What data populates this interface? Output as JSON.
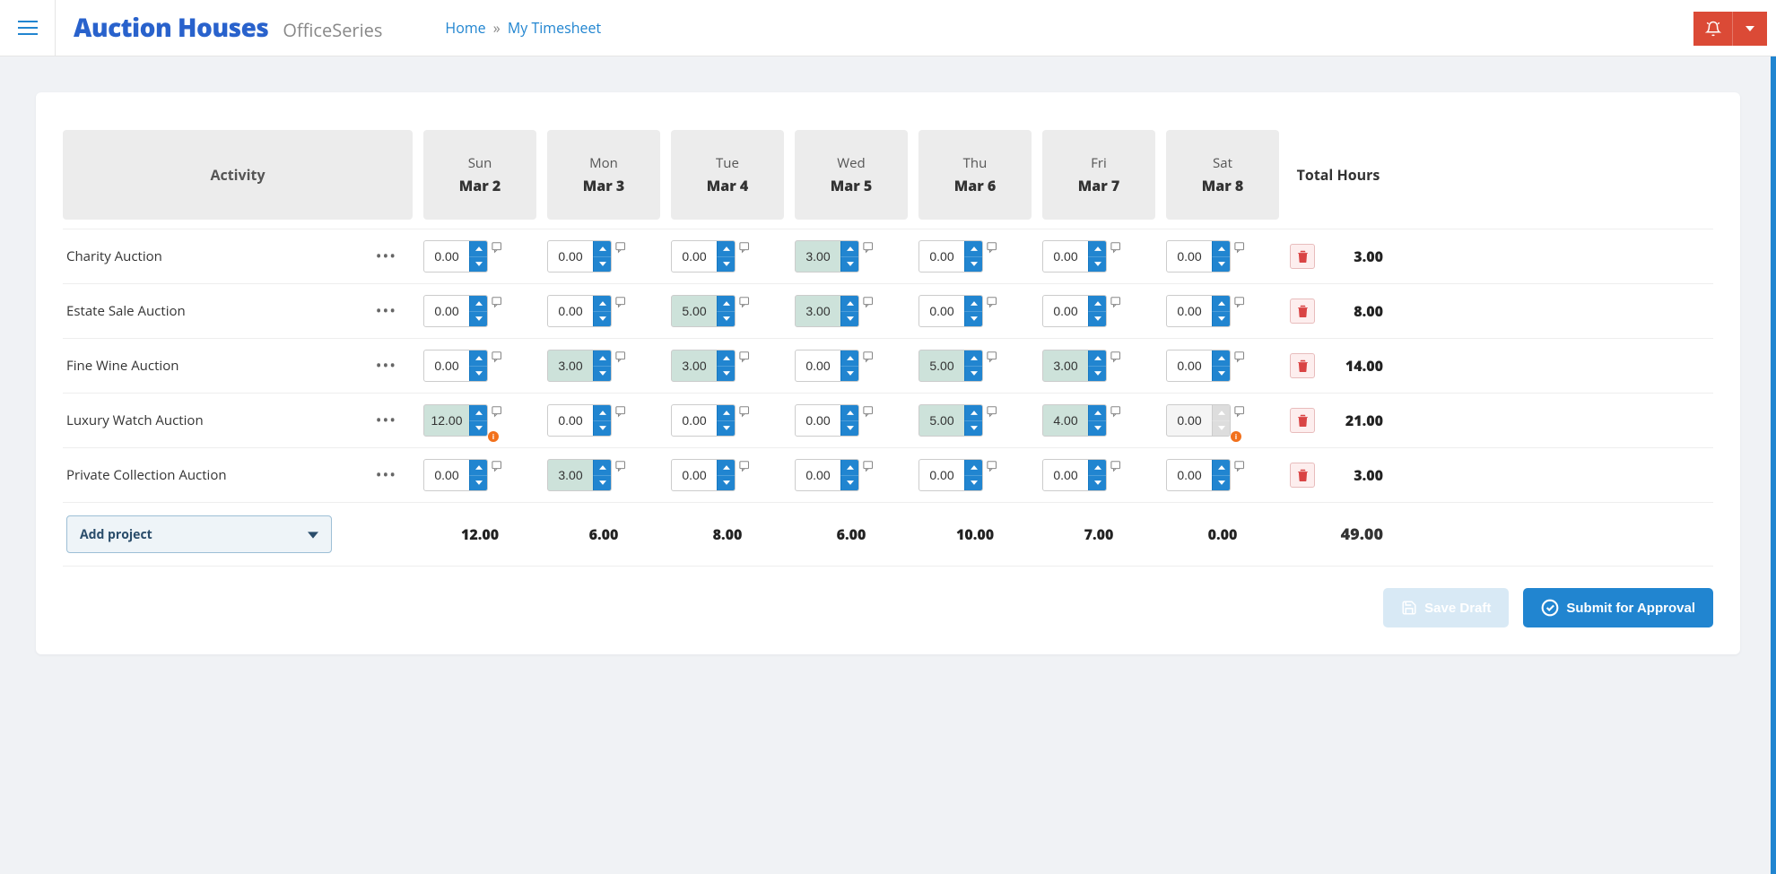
{
  "header": {
    "brand_main": "Auction Houses",
    "brand_sub": "OfficeSeries",
    "breadcrumb_home": "Home",
    "breadcrumb_current": "My Timesheet"
  },
  "table": {
    "activity_header": "Activity",
    "total_header": "Total Hours",
    "days": [
      {
        "dow": "Sun",
        "date": "Mar 2"
      },
      {
        "dow": "Mon",
        "date": "Mar 3"
      },
      {
        "dow": "Tue",
        "date": "Mar 4"
      },
      {
        "dow": "Wed",
        "date": "Mar 5"
      },
      {
        "dow": "Thu",
        "date": "Mar 6"
      },
      {
        "dow": "Fri",
        "date": "Mar 7"
      },
      {
        "dow": "Sat",
        "date": "Mar 8"
      }
    ],
    "rows": [
      {
        "activity": "Charity Auction",
        "cells": [
          {
            "value": "0.00",
            "filled": false,
            "warn": false,
            "disabled": false
          },
          {
            "value": "0.00",
            "filled": false,
            "warn": false,
            "disabled": false
          },
          {
            "value": "0.00",
            "filled": false,
            "warn": false,
            "disabled": false
          },
          {
            "value": "3.00",
            "filled": true,
            "warn": false,
            "disabled": false
          },
          {
            "value": "0.00",
            "filled": false,
            "warn": false,
            "disabled": false
          },
          {
            "value": "0.00",
            "filled": false,
            "warn": false,
            "disabled": false
          },
          {
            "value": "0.00",
            "filled": false,
            "warn": false,
            "disabled": false
          }
        ],
        "total": "3.00"
      },
      {
        "activity": "Estate Sale Auction",
        "cells": [
          {
            "value": "0.00",
            "filled": false,
            "warn": false,
            "disabled": false
          },
          {
            "value": "0.00",
            "filled": false,
            "warn": false,
            "disabled": false
          },
          {
            "value": "5.00",
            "filled": true,
            "warn": false,
            "disabled": false
          },
          {
            "value": "3.00",
            "filled": true,
            "warn": false,
            "disabled": false
          },
          {
            "value": "0.00",
            "filled": false,
            "warn": false,
            "disabled": false
          },
          {
            "value": "0.00",
            "filled": false,
            "warn": false,
            "disabled": false
          },
          {
            "value": "0.00",
            "filled": false,
            "warn": false,
            "disabled": false
          }
        ],
        "total": "8.00"
      },
      {
        "activity": "Fine Wine Auction",
        "cells": [
          {
            "value": "0.00",
            "filled": false,
            "warn": false,
            "disabled": false
          },
          {
            "value": "3.00",
            "filled": true,
            "warn": false,
            "disabled": false
          },
          {
            "value": "3.00",
            "filled": true,
            "warn": false,
            "disabled": false
          },
          {
            "value": "0.00",
            "filled": false,
            "warn": false,
            "disabled": false
          },
          {
            "value": "5.00",
            "filled": true,
            "warn": false,
            "disabled": false
          },
          {
            "value": "3.00",
            "filled": true,
            "warn": false,
            "disabled": false
          },
          {
            "value": "0.00",
            "filled": false,
            "warn": false,
            "disabled": false
          }
        ],
        "total": "14.00"
      },
      {
        "activity": "Luxury Watch Auction",
        "cells": [
          {
            "value": "12.00",
            "filled": true,
            "warn": true,
            "disabled": false
          },
          {
            "value": "0.00",
            "filled": false,
            "warn": false,
            "disabled": false
          },
          {
            "value": "0.00",
            "filled": false,
            "warn": false,
            "disabled": false
          },
          {
            "value": "0.00",
            "filled": false,
            "warn": false,
            "disabled": false
          },
          {
            "value": "5.00",
            "filled": true,
            "warn": false,
            "disabled": false
          },
          {
            "value": "4.00",
            "filled": true,
            "warn": false,
            "disabled": false
          },
          {
            "value": "0.00",
            "filled": false,
            "warn": true,
            "disabled": true
          }
        ],
        "total": "21.00"
      },
      {
        "activity": "Private Collection Auction",
        "cells": [
          {
            "value": "0.00",
            "filled": false,
            "warn": false,
            "disabled": false
          },
          {
            "value": "3.00",
            "filled": true,
            "warn": false,
            "disabled": false
          },
          {
            "value": "0.00",
            "filled": false,
            "warn": false,
            "disabled": false
          },
          {
            "value": "0.00",
            "filled": false,
            "warn": false,
            "disabled": false
          },
          {
            "value": "0.00",
            "filled": false,
            "warn": false,
            "disabled": false
          },
          {
            "value": "0.00",
            "filled": false,
            "warn": false,
            "disabled": false
          },
          {
            "value": "0.00",
            "filled": false,
            "warn": false,
            "disabled": false
          }
        ],
        "total": "3.00"
      }
    ],
    "column_totals": [
      "12.00",
      "6.00",
      "8.00",
      "6.00",
      "10.00",
      "7.00",
      "0.00"
    ],
    "grand_total": "49.00",
    "add_project_label": "Add project"
  },
  "actions": {
    "save_draft": "Save Draft",
    "submit": "Submit for Approval"
  },
  "colors": {
    "primary": "#2185d0",
    "brand": "#2962cc",
    "danger": "#db4a36",
    "warn": "#f2711c",
    "filled_cell_bg": "#cde2da",
    "page_bg": "#f0f2f5"
  }
}
